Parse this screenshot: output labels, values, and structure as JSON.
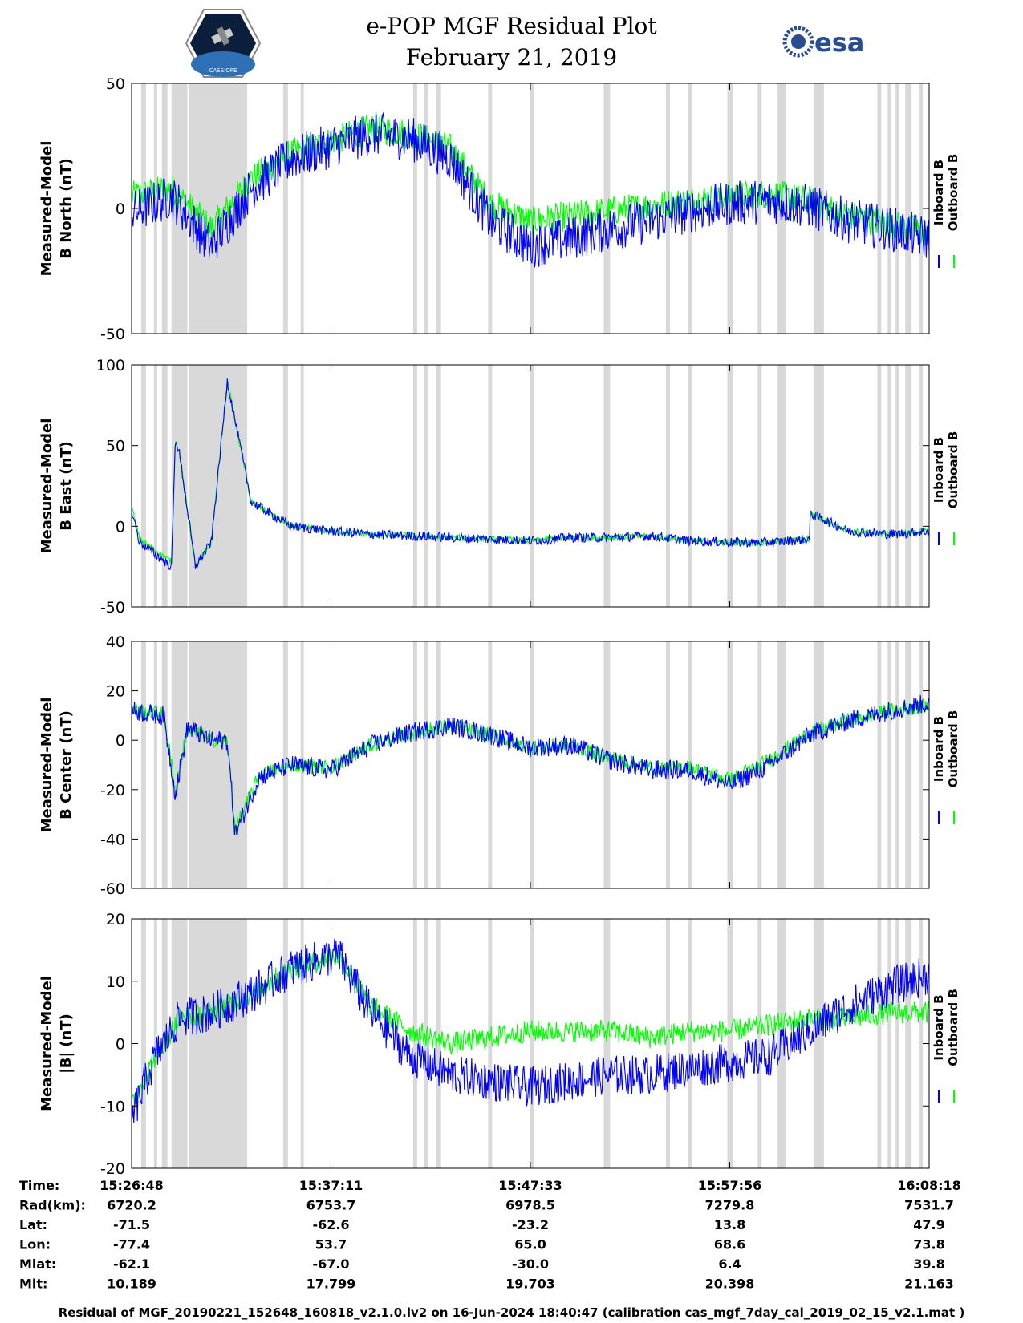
{
  "title": {
    "line1": "e-POP MGF Residual Plot",
    "line2": "February 21, 2019"
  },
  "logos": {
    "left": "CASSIOPE",
    "right": "esa"
  },
  "legend": {
    "inboard": "Inboard B",
    "outboard": "Outboard B"
  },
  "colors": {
    "inboard": "#0000ff",
    "outboard": "#00ff00",
    "gap_shading": "#d9d9d9"
  },
  "footer": "Residual of MGF_20190221_152648_160818_v2.1.0.lv2 on 16-Jun-2024 18:40:47 (calibration cas_mgf_7day_cal_2019_02_15_v2.1.mat )",
  "time_axis": {
    "row_labels": [
      "Time:",
      "Rad(km):",
      "Lat:",
      "Lon:",
      "Mlat:",
      "Mlt:"
    ],
    "columns": [
      {
        "time": "15:26:48",
        "rad": "6720.2",
        "lat": "-71.5",
        "lon": "-77.4",
        "mlat": "-62.1",
        "mlt": "10.189"
      },
      {
        "time": "15:37:11",
        "rad": "6753.7",
        "lat": "-62.6",
        "lon": "53.7",
        "mlat": "-67.0",
        "mlt": "17.799"
      },
      {
        "time": "15:47:33",
        "rad": "6978.5",
        "lat": "-23.2",
        "lon": "65.0",
        "mlat": "-30.0",
        "mlt": "19.703"
      },
      {
        "time": "15:57:56",
        "rad": "7279.8",
        "lat": "13.8",
        "lon": "68.6",
        "mlat": "6.4",
        "mlt": "20.398"
      },
      {
        "time": "16:08:18",
        "rad": "7531.7",
        "lat": "47.9",
        "lon": "73.8",
        "mlat": "39.8",
        "mlt": "21.163"
      }
    ]
  },
  "chart_data": [
    {
      "type": "line",
      "title": "",
      "xlabel": "",
      "ylabel": [
        "Measured-Model",
        "B North (nT)"
      ],
      "ylim": [
        -50,
        50
      ],
      "yticks": [
        -50,
        0,
        50
      ],
      "x": [
        0,
        0.05,
        0.1,
        0.15,
        0.2,
        0.25,
        0.3,
        0.35,
        0.4,
        0.45,
        0.5,
        0.55,
        0.6,
        0.65,
        0.7,
        0.75,
        0.8,
        0.85,
        0.9,
        0.95,
        1.0
      ],
      "series": [
        {
          "name": "Inboard B",
          "values": [
            -2,
            5,
            -15,
            8,
            20,
            25,
            30,
            28,
            20,
            -5,
            -15,
            -12,
            -8,
            -5,
            -1,
            2,
            3,
            1,
            -5,
            -8,
            -12
          ],
          "noise": 9
        },
        {
          "name": "Outboard B",
          "values": [
            5,
            8,
            -8,
            12,
            22,
            27,
            32,
            30,
            24,
            2,
            -5,
            -3,
            -1,
            1,
            3,
            5,
            6,
            3,
            -3,
            -6,
            -10
          ],
          "noise": 6
        }
      ]
    },
    {
      "type": "line",
      "title": "",
      "xlabel": "",
      "ylabel": [
        "Measured-Model",
        "B East (nT)"
      ],
      "ylim": [
        -50,
        100
      ],
      "yticks": [
        -50,
        0,
        50,
        100
      ],
      "x": [
        0,
        0.01,
        0.05,
        0.055,
        0.06,
        0.08,
        0.1,
        0.12,
        0.13,
        0.15,
        0.2,
        0.25,
        0.3,
        0.35,
        0.4,
        0.45,
        0.5,
        0.55,
        0.6,
        0.65,
        0.7,
        0.75,
        0.8,
        0.85,
        0.851,
        0.9,
        0.95,
        1.0
      ],
      "series": [
        {
          "name": "Inboard B",
          "values": [
            10,
            -10,
            -25,
            55,
            45,
            -25,
            -10,
            90,
            65,
            15,
            0,
            -3,
            -5,
            -6,
            -7,
            -8,
            -9,
            -7,
            -7,
            -6,
            -9,
            -10,
            -10,
            -8,
            8,
            -3,
            -5,
            -3
          ],
          "noise": 3
        },
        {
          "name": "Outboard B",
          "values": [
            12,
            -8,
            -22,
            55,
            45,
            -25,
            -10,
            90,
            65,
            15,
            0,
            -3,
            -5,
            -6,
            -7,
            -8,
            -9,
            -7,
            -7,
            -6,
            -9,
            -10,
            -10,
            -8,
            8,
            -3,
            -5,
            -3
          ],
          "noise": 2
        }
      ]
    },
    {
      "type": "line",
      "title": "",
      "xlabel": "",
      "ylabel": [
        "Measured-Model",
        "B Center (nT)"
      ],
      "ylim": [
        -60,
        40
      ],
      "yticks": [
        -60,
        -40,
        -20,
        0,
        20,
        40
      ],
      "x": [
        0,
        0.04,
        0.055,
        0.07,
        0.1,
        0.12,
        0.13,
        0.16,
        0.2,
        0.25,
        0.3,
        0.35,
        0.4,
        0.45,
        0.5,
        0.55,
        0.6,
        0.65,
        0.7,
        0.75,
        0.8,
        0.85,
        0.9,
        0.95,
        1.0
      ],
      "series": [
        {
          "name": "Inboard B",
          "values": [
            12,
            10,
            -22,
            5,
            0,
            0,
            -38,
            -15,
            -10,
            -12,
            -2,
            3,
            6,
            2,
            -3,
            -2,
            -8,
            -12,
            -12,
            -18,
            -10,
            2,
            8,
            12,
            15
          ],
          "noise": 4
        },
        {
          "name": "Outboard B",
          "values": [
            12,
            11,
            -20,
            5,
            0,
            0,
            -36,
            -14,
            -10,
            -11,
            -2,
            3,
            6,
            2,
            -3,
            -2,
            -7,
            -11,
            -11,
            -16,
            -8,
            3,
            8,
            12,
            14
          ],
          "noise": 3
        }
      ]
    },
    {
      "type": "line",
      "title": "",
      "xlabel": "",
      "ylabel": [
        "Measured-Model",
        "|B| (nT)"
      ],
      "ylim": [
        -20,
        20
      ],
      "yticks": [
        -20,
        -10,
        0,
        10,
        20
      ],
      "x": [
        0,
        0.03,
        0.06,
        0.1,
        0.15,
        0.2,
        0.25,
        0.26,
        0.3,
        0.35,
        0.4,
        0.5,
        0.55,
        0.6,
        0.65,
        0.7,
        0.75,
        0.8,
        0.85,
        0.9,
        0.95,
        1.0
      ],
      "series": [
        {
          "name": "Inboard B",
          "values": [
            -12,
            -2,
            4,
            5,
            8,
            12,
            14,
            14,
            5,
            -2,
            -5,
            -7,
            -6,
            -5,
            -5,
            -4,
            -3,
            -2,
            2,
            6,
            9,
            11
          ],
          "noise": 3.2
        },
        {
          "name": "Outboard B",
          "values": [
            -10,
            -2,
            4,
            5,
            8,
            12,
            14,
            14,
            6,
            2,
            0,
            2,
            2,
            2,
            1,
            2,
            2,
            3,
            4,
            4,
            5,
            5
          ],
          "noise": 1.8
        }
      ]
    }
  ],
  "gap_intervals": [
    [
      0.012,
      0.018
    ],
    [
      0.028,
      0.032
    ],
    [
      0.038,
      0.045
    ],
    [
      0.05,
      0.07
    ],
    [
      0.072,
      0.145
    ],
    [
      0.19,
      0.196
    ],
    [
      0.212,
      0.216
    ],
    [
      0.353,
      0.358
    ],
    [
      0.367,
      0.372
    ],
    [
      0.382,
      0.388
    ],
    [
      0.447,
      0.452
    ],
    [
      0.5,
      0.505
    ],
    [
      0.592,
      0.6
    ],
    [
      0.67,
      0.675
    ],
    [
      0.698,
      0.703
    ],
    [
      0.747,
      0.754
    ],
    [
      0.785,
      0.79
    ],
    [
      0.81,
      0.82
    ],
    [
      0.855,
      0.868
    ],
    [
      0.935,
      0.94
    ],
    [
      0.948,
      0.952
    ],
    [
      0.958,
      0.962
    ],
    [
      0.97,
      0.978
    ],
    [
      0.988,
      0.992
    ]
  ]
}
